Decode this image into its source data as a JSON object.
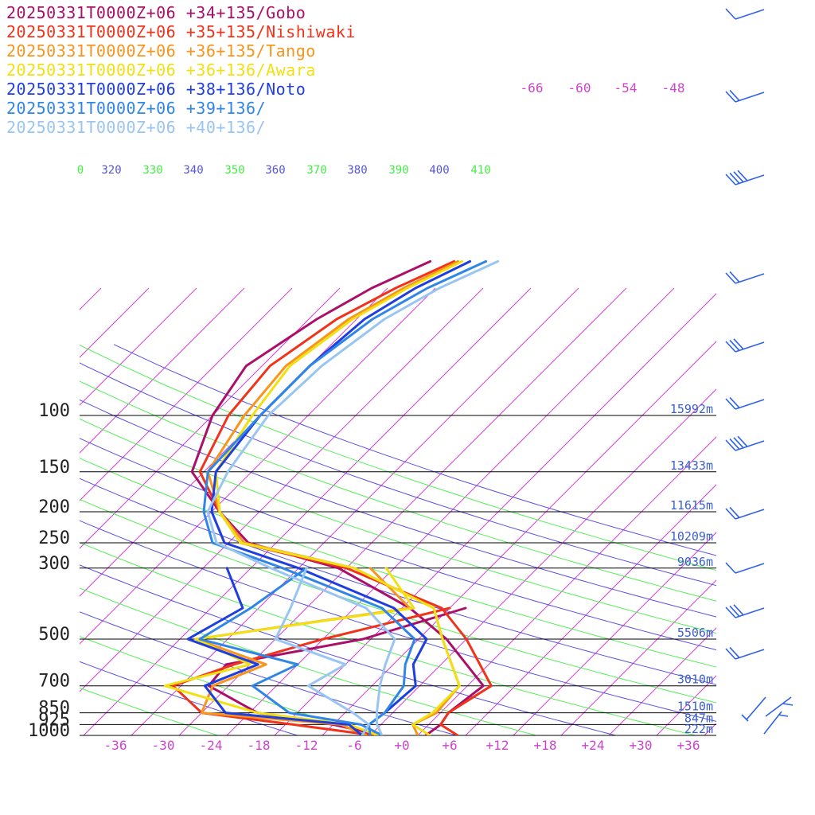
{
  "chart_data": {
    "type": "line",
    "title": "",
    "xlabel": "",
    "ylabel": "",
    "pressure_levels": [
      1000,
      925,
      850,
      700,
      500,
      300,
      250,
      200,
      150,
      100
    ],
    "pressure_labels": [
      "1000",
      "925",
      "850",
      "700",
      "500",
      "300",
      "250",
      "200",
      "150",
      "100"
    ],
    "heights": [
      {
        "p": 100,
        "label": "15992m"
      },
      {
        "p": 150,
        "label": "13433m"
      },
      {
        "p": 200,
        "label": "11615m"
      },
      {
        "p": 250,
        "label": "10209m"
      },
      {
        "p": 300,
        "label": "9036m"
      },
      {
        "p": 500,
        "label": "5506m"
      },
      {
        "p": 700,
        "label": "3010m"
      },
      {
        "p": 850,
        "label": "1510m"
      },
      {
        "p": 925,
        "label": "847m"
      },
      {
        "p": 1000,
        "label": "222m"
      }
    ],
    "temperature_ticks": [
      "-36",
      "-30",
      "-24",
      "-18",
      "-12",
      "-6",
      "+0",
      "+6",
      "+12",
      "+18",
      "+24",
      "+30",
      "+36"
    ],
    "temperature_tick_values": [
      -36,
      -30,
      -24,
      -18,
      -12,
      -6,
      0,
      6,
      12,
      18,
      24,
      30,
      36
    ],
    "upper_isotherm_labels": [
      "-66",
      "-60",
      "-54",
      "-48"
    ],
    "theta_labels": [
      {
        "text": "0",
        "color": "#44ee44"
      },
      {
        "text": "320",
        "color": "#5555dd"
      },
      {
        "text": "330",
        "color": "#44ee44"
      },
      {
        "text": "340",
        "color": "#5555dd"
      },
      {
        "text": "350",
        "color": "#44ee44"
      },
      {
        "text": "360",
        "color": "#5555dd"
      },
      {
        "text": "370",
        "color": "#44ee44"
      },
      {
        "text": "380",
        "color": "#5555dd"
      },
      {
        "text": "390",
        "color": "#44ee44"
      },
      {
        "text": "400",
        "color": "#5555dd"
      },
      {
        "text": "410",
        "color": "#44ee44"
      }
    ],
    "xlim": [
      -40,
      40
    ],
    "ylim": [
      1000,
      60
    ],
    "grid": true,
    "legend_placement": "top-left",
    "series": [
      {
        "name": "20250331T0000Z+06 +34+135/Gobo",
        "color": "#aa0f6a",
        "temperature": [
          [
            1000,
            3.0
          ],
          [
            925,
            3.5
          ],
          [
            850,
            3.0
          ],
          [
            700,
            4.0
          ],
          [
            500,
            -6.5
          ],
          [
            400,
            -15.0
          ],
          [
            300,
            -29.0
          ],
          [
            250,
            -43.5
          ],
          [
            200,
            -51.0
          ],
          [
            150,
            -59.5
          ],
          [
            100,
            -64.0
          ],
          [
            70,
            -66.0
          ],
          [
            50,
            -63.0
          ],
          [
            40,
            -60.0
          ],
          [
            33,
            -56.0
          ]
        ],
        "dewpoint": [
          [
            1000,
            -2.5
          ],
          [
            925,
            -10.0
          ],
          [
            850,
            -21.0
          ],
          [
            700,
            -30.5
          ],
          [
            600,
            -31.0
          ],
          [
            500,
            -17.0
          ],
          [
            400,
            -8.0
          ]
        ]
      },
      {
        "name": "20250331T0000Z+06 +35+135/Nishiwaki",
        "color": "#f0331a",
        "temperature": [
          [
            1000,
            7.0
          ],
          [
            925,
            3.5
          ],
          [
            850,
            3.0
          ],
          [
            700,
            5.0
          ],
          [
            500,
            -4.0
          ],
          [
            400,
            -11.0
          ],
          [
            300,
            -28.0
          ],
          [
            250,
            -44.5
          ],
          [
            200,
            -51.0
          ],
          [
            150,
            -58.5
          ],
          [
            100,
            -62.0
          ],
          [
            70,
            -63.0
          ],
          [
            50,
            -60.5
          ],
          [
            40,
            -57.0
          ],
          [
            33,
            -53.0
          ]
        ],
        "dewpoint": [
          [
            1000,
            -3.5
          ],
          [
            925,
            -15.0
          ],
          [
            850,
            -28.0
          ],
          [
            700,
            -35.0
          ],
          [
            600,
            -30.0
          ],
          [
            500,
            -22.0
          ],
          [
            400,
            -10.0
          ]
        ]
      },
      {
        "name": "20250331T0000Z+06 +36+135/Tango",
        "color": "#f7951e",
        "temperature": [
          [
            1000,
            2.0
          ],
          [
            925,
            0.0
          ],
          [
            850,
            1.5
          ],
          [
            700,
            1.0
          ],
          [
            500,
            -7.0
          ],
          [
            400,
            -12.0
          ],
          [
            300,
            -27.0
          ],
          [
            250,
            -44.0
          ],
          [
            200,
            -51.0
          ],
          [
            150,
            -57.5
          ],
          [
            100,
            -60.0
          ],
          [
            70,
            -61.0
          ],
          [
            50,
            -59.0
          ],
          [
            40,
            -56.0
          ],
          [
            33,
            -52.5
          ]
        ],
        "dewpoint": [
          [
            1000,
            -4.5
          ],
          [
            925,
            -9.0
          ],
          [
            850,
            -28.0
          ],
          [
            700,
            -30.0
          ],
          [
            600,
            -26.0
          ],
          [
            500,
            -38.0
          ],
          [
            400,
            -15.0
          ],
          [
            300,
            -25.0
          ]
        ]
      },
      {
        "name": "20250331T0000Z+06 +36+136/Awara",
        "color": "#f2e013",
        "temperature": [
          [
            1000,
            3.5
          ],
          [
            925,
            0.0
          ],
          [
            850,
            1.0
          ],
          [
            700,
            1.0
          ],
          [
            500,
            -7.0
          ],
          [
            400,
            -12.0
          ],
          [
            300,
            -27.0
          ],
          [
            250,
            -44.5
          ],
          [
            200,
            -51.0
          ],
          [
            150,
            -56.5
          ],
          [
            100,
            -59.0
          ],
          [
            70,
            -60.5
          ],
          [
            50,
            -58.5
          ],
          [
            40,
            -55.5
          ],
          [
            33,
            -52.0
          ]
        ],
        "dewpoint": [
          [
            1000,
            -3.0
          ],
          [
            925,
            -8.0
          ],
          [
            850,
            -21.0
          ],
          [
            700,
            -36.0
          ],
          [
            600,
            -28.0
          ],
          [
            500,
            -38.0
          ],
          [
            400,
            -14.5
          ],
          [
            300,
            -23.0
          ]
        ]
      },
      {
        "name": "20250331T0000Z+06 +38+136/Noto",
        "color": "#1e3ee0",
        "temperature": [
          [
            1000,
            -5.0
          ],
          [
            925,
            -5.5
          ],
          [
            850,
            -5.0
          ],
          [
            700,
            -4.5
          ],
          [
            600,
            -7.5
          ],
          [
            500,
            -9.0
          ],
          [
            400,
            -17.0
          ],
          [
            300,
            -34.0
          ],
          [
            250,
            -46.5
          ],
          [
            200,
            -52.0
          ],
          [
            150,
            -56.5
          ],
          [
            100,
            -58.0
          ],
          [
            70,
            -58.0
          ],
          [
            50,
            -57.0
          ],
          [
            40,
            -54.5
          ],
          [
            33,
            -51.0
          ]
        ],
        "dewpoint": [
          [
            1000,
            -5.0
          ],
          [
            925,
            -8.0
          ],
          [
            850,
            -25.0
          ],
          [
            700,
            -31.0
          ],
          [
            600,
            -27.0
          ],
          [
            500,
            -39.0
          ],
          [
            400,
            -36.0
          ],
          [
            300,
            -43.0
          ]
        ]
      },
      {
        "name": "20250331T0000Z+06 +39+136/",
        "color": "#2f86e6",
        "temperature": [
          [
            1000,
            -4.0
          ],
          [
            925,
            -5.5
          ],
          [
            850,
            -5.0
          ],
          [
            700,
            -6.0
          ],
          [
            600,
            -8.5
          ],
          [
            500,
            -10.5
          ],
          [
            400,
            -18.5
          ],
          [
            300,
            -36.0
          ],
          [
            250,
            -48.0
          ],
          [
            200,
            -53.0
          ],
          [
            150,
            -57.5
          ],
          [
            100,
            -58.0
          ],
          [
            70,
            -58.0
          ],
          [
            50,
            -56.0
          ],
          [
            40,
            -53.0
          ],
          [
            33,
            -49.0
          ]
        ],
        "dewpoint": [
          [
            1000,
            -2.5
          ],
          [
            925,
            -6.5
          ],
          [
            850,
            -17.0
          ],
          [
            700,
            -25.0
          ],
          [
            600,
            -22.0
          ],
          [
            500,
            -37.5
          ],
          [
            400,
            -35.0
          ],
          [
            300,
            -33.0
          ]
        ]
      },
      {
        "name": "20250331T0000Z+06 +40+136/",
        "color": "#99c5f2",
        "temperature": [
          [
            1000,
            -2.5
          ],
          [
            925,
            -4.5
          ],
          [
            850,
            -6.0
          ],
          [
            700,
            -9.0
          ],
          [
            600,
            -11.0
          ],
          [
            500,
            -13.0
          ],
          [
            400,
            -20.5
          ],
          [
            300,
            -37.5
          ],
          [
            250,
            -47.5
          ],
          [
            200,
            -52.5
          ],
          [
            150,
            -55.0
          ],
          [
            100,
            -57.0
          ],
          [
            70,
            -56.5
          ],
          [
            50,
            -54.5
          ],
          [
            40,
            -51.5
          ],
          [
            33,
            -47.5
          ]
        ],
        "dewpoint": [
          [
            1000,
            -5.0
          ],
          [
            925,
            -5.5
          ],
          [
            850,
            -9.0
          ],
          [
            700,
            -18.0
          ],
          [
            600,
            -16.0
          ],
          [
            500,
            -28.0
          ],
          [
            400,
            -30.0
          ],
          [
            300,
            -33.0
          ]
        ]
      }
    ]
  },
  "wind_barb_color": "#2e62e8"
}
